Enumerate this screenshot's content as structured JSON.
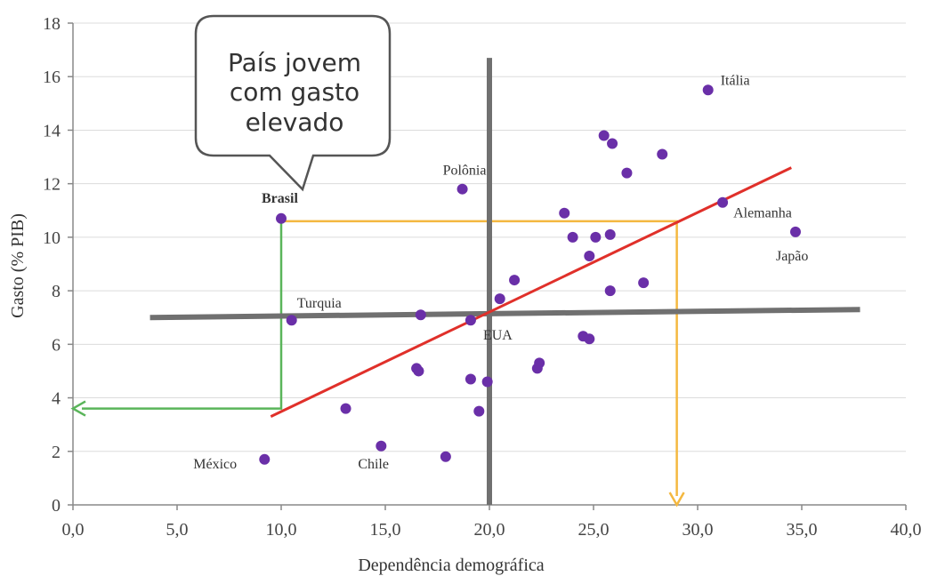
{
  "chart_data": {
    "type": "scatter",
    "xlabel": "Dependência demográfica",
    "ylabel": "Gasto (% PIB)",
    "xlim": [
      0,
      40
    ],
    "ylim": [
      0,
      18
    ],
    "x_ticks": [
      "0,0",
      "5,0",
      "10,0",
      "15,0",
      "20,0",
      "25,0",
      "30,0",
      "35,0",
      "40,0"
    ],
    "y_ticks": [
      "0",
      "2",
      "4",
      "6",
      "8",
      "10",
      "12",
      "14",
      "16",
      "18"
    ],
    "grid": "horizontal",
    "point_color": "#6a2fa8",
    "points": [
      {
        "x": 10.0,
        "y": 10.7,
        "label": "Brasil",
        "bold": true
      },
      {
        "x": 18.7,
        "y": 11.8,
        "label": "Polônia"
      },
      {
        "x": 30.5,
        "y": 15.5,
        "label": "Itália"
      },
      {
        "x": 31.2,
        "y": 11.3,
        "label": "Alemanha"
      },
      {
        "x": 34.7,
        "y": 10.2,
        "label": "Japão"
      },
      {
        "x": 10.5,
        "y": 6.9,
        "label": "Turquia"
      },
      {
        "x": 19.1,
        "y": 6.9,
        "label": "EUA"
      },
      {
        "x": 9.2,
        "y": 1.7,
        "label": "México"
      },
      {
        "x": 14.8,
        "y": 2.2,
        "label": "Chile"
      },
      {
        "x": 25.5,
        "y": 13.8,
        "label": ""
      },
      {
        "x": 25.9,
        "y": 13.5,
        "label": ""
      },
      {
        "x": 28.3,
        "y": 13.1,
        "label": ""
      },
      {
        "x": 26.6,
        "y": 12.4,
        "label": ""
      },
      {
        "x": 23.6,
        "y": 10.9,
        "label": ""
      },
      {
        "x": 24.0,
        "y": 10.0,
        "label": ""
      },
      {
        "x": 25.1,
        "y": 10.0,
        "label": ""
      },
      {
        "x": 25.8,
        "y": 10.1,
        "label": ""
      },
      {
        "x": 24.8,
        "y": 9.3,
        "label": ""
      },
      {
        "x": 21.2,
        "y": 8.4,
        "label": ""
      },
      {
        "x": 27.4,
        "y": 8.3,
        "label": ""
      },
      {
        "x": 25.8,
        "y": 8.0,
        "label": ""
      },
      {
        "x": 20.5,
        "y": 7.7,
        "label": ""
      },
      {
        "x": 16.7,
        "y": 7.1,
        "label": ""
      },
      {
        "x": 24.5,
        "y": 6.3,
        "label": ""
      },
      {
        "x": 24.8,
        "y": 6.2,
        "label": ""
      },
      {
        "x": 22.4,
        "y": 5.3,
        "label": ""
      },
      {
        "x": 22.3,
        "y": 5.1,
        "label": ""
      },
      {
        "x": 16.5,
        "y": 5.1,
        "label": ""
      },
      {
        "x": 16.6,
        "y": 5.0,
        "label": ""
      },
      {
        "x": 19.1,
        "y": 4.7,
        "label": ""
      },
      {
        "x": 19.9,
        "y": 4.6,
        "label": ""
      },
      {
        "x": 13.1,
        "y": 3.6,
        "label": ""
      },
      {
        "x": 19.5,
        "y": 3.5,
        "label": ""
      },
      {
        "x": 17.9,
        "y": 1.8,
        "label": ""
      }
    ],
    "trend_line": {
      "color": "#e0302a",
      "from": [
        9.5,
        3.3
      ],
      "to": [
        34.5,
        12.6
      ]
    },
    "mean_lines": {
      "color": "#707070",
      "vertical": {
        "from": [
          20.0,
          0
        ],
        "to": [
          20.0,
          16.7
        ]
      },
      "horizontal": {
        "from": [
          3.7,
          7.0
        ],
        "to": [
          37.8,
          7.3
        ]
      }
    },
    "green_arrow": {
      "color": "#5ab55a",
      "points": [
        [
          10.0,
          10.6
        ],
        [
          10.0,
          3.6
        ],
        [
          0,
          3.6
        ]
      ]
    },
    "yellow_arrow": {
      "color": "#f4b840",
      "points": [
        [
          10.0,
          10.6
        ],
        [
          29.0,
          10.6
        ],
        [
          29.0,
          0
        ]
      ]
    },
    "callout": {
      "lines": [
        "País jovem",
        "com gasto",
        "elevado"
      ]
    }
  }
}
